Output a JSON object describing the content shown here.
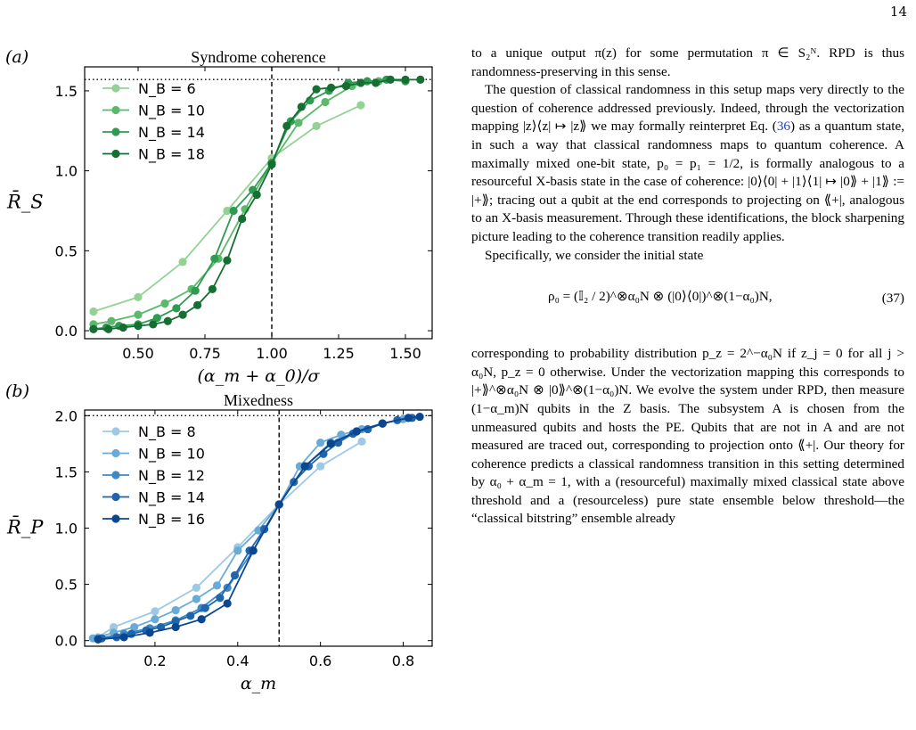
{
  "page_number": "14",
  "figure": {
    "panel_a": {
      "label": "(a)",
      "chart_data": {
        "type": "line",
        "title": "Syndrome coherence",
        "xlabel": "(α_m + α_0)/σ",
        "ylabel": "R̄_S",
        "xlim": [
          0.3,
          1.6
        ],
        "ylim": [
          -0.05,
          1.65
        ],
        "xticks": [
          "0.50",
          "0.75",
          "1.00",
          "1.25",
          "1.50"
        ],
        "yticks": [
          "0.0",
          "0.5",
          "1.0",
          "1.5"
        ],
        "hline": 1.5708,
        "vline": 1.0,
        "legend_position": "upper-left",
        "colors": [
          "#92d394",
          "#5cb96b",
          "#2f9a51",
          "#166e32"
        ],
        "series": [
          {
            "name": "N_B = 6",
            "x": [
              0.333,
              0.5,
              0.667,
              0.833,
              1.0,
              1.167,
              1.333
            ],
            "y": [
              0.12,
              0.21,
              0.43,
              0.75,
              1.08,
              1.28,
              1.41
            ]
          },
          {
            "name": "N_B = 10",
            "x": [
              0.333,
              0.4,
              0.5,
              0.6,
              0.7,
              0.8,
              0.9,
              1.0,
              1.1,
              1.2,
              1.3,
              1.4
            ],
            "y": [
              0.04,
              0.06,
              0.1,
              0.17,
              0.26,
              0.45,
              0.76,
              1.05,
              1.3,
              1.43,
              1.53,
              1.56
            ]
          },
          {
            "name": "N_B = 14",
            "x": [
              0.333,
              0.381,
              0.429,
              0.5,
              0.571,
              0.643,
              0.714,
              0.786,
              0.857,
              0.929,
              1.0,
              1.071,
              1.143,
              1.214,
              1.286,
              1.357,
              1.429,
              1.5
            ],
            "y": [
              0.01,
              0.02,
              0.03,
              0.04,
              0.08,
              0.14,
              0.25,
              0.45,
              0.75,
              0.88,
              1.05,
              1.31,
              1.44,
              1.5,
              1.55,
              1.56,
              1.57,
              1.56
            ]
          },
          {
            "name": "N_B = 18",
            "x": [
              0.333,
              0.389,
              0.444,
              0.5,
              0.556,
              0.611,
              0.667,
              0.722,
              0.778,
              0.833,
              0.889,
              0.944,
              1.0,
              1.056,
              1.111,
              1.167,
              1.222,
              1.278,
              1.333,
              1.389,
              1.444,
              1.5,
              1.556
            ],
            "y": [
              0.01,
              0.01,
              0.02,
              0.03,
              0.04,
              0.06,
              0.1,
              0.16,
              0.26,
              0.44,
              0.7,
              0.85,
              1.04,
              1.28,
              1.4,
              1.51,
              1.52,
              1.53,
              1.55,
              1.55,
              1.57,
              1.57,
              1.57
            ]
          }
        ]
      }
    },
    "panel_b": {
      "label": "(b)",
      "chart_data": {
        "type": "line",
        "title": "Mixedness",
        "xlabel": "α_m",
        "ylabel": "R̄_P",
        "xlim": [
          0.03,
          0.87
        ],
        "ylim": [
          -0.05,
          2.05
        ],
        "xticks": [
          "0.2",
          "0.4",
          "0.6",
          "0.8"
        ],
        "yticks": [
          "0.0",
          "0.5",
          "1.0",
          "1.5",
          "2.0"
        ],
        "hline": 2.0,
        "vline": 0.5,
        "legend_position": "upper-left",
        "colors": [
          "#9ec9e6",
          "#6aaad6",
          "#3f88c4",
          "#1f65ad",
          "#0b4791"
        ],
        "series": [
          {
            "name": "N_B = 8",
            "x": [
              0.0625,
              0.1,
              0.2,
              0.3,
              0.4,
              0.5,
              0.6,
              0.7
            ],
            "y": [
              0.03,
              0.12,
              0.26,
              0.47,
              0.83,
              1.21,
              1.55,
              1.77
            ]
          },
          {
            "name": "N_B = 10",
            "x": [
              0.05,
              0.1,
              0.15,
              0.2,
              0.25,
              0.3,
              0.35,
              0.4,
              0.45,
              0.5,
              0.55,
              0.6,
              0.65,
              0.7,
              0.75,
              0.8
            ],
            "y": [
              0.02,
              0.07,
              0.12,
              0.19,
              0.27,
              0.37,
              0.49,
              0.8,
              0.98,
              1.21,
              1.55,
              1.76,
              1.83,
              1.88,
              1.93,
              1.97
            ]
          },
          {
            "name": "N_B = 12",
            "x": [
              0.0625,
              0.125,
              0.1875,
              0.25,
              0.3125,
              0.375,
              0.4375,
              0.5,
              0.5625,
              0.625,
              0.6875,
              0.75,
              0.8125
            ],
            "y": [
              0.02,
              0.06,
              0.11,
              0.18,
              0.29,
              0.47,
              0.8,
              1.21,
              1.55,
              1.76,
              1.86,
              1.93,
              1.98
            ]
          },
          {
            "name": "N_B = 14",
            "x": [
              0.0714,
              0.1071,
              0.1429,
              0.1786,
              0.2143,
              0.25,
              0.2857,
              0.3214,
              0.3571,
              0.3929,
              0.4286,
              0.4643,
              0.5,
              0.5357,
              0.5714,
              0.6071,
              0.6429,
              0.6786,
              0.7143,
              0.75,
              0.7857,
              0.8214
            ],
            "y": [
              0.02,
              0.03,
              0.06,
              0.09,
              0.12,
              0.17,
              0.22,
              0.29,
              0.38,
              0.58,
              0.8,
              0.99,
              1.21,
              1.41,
              1.55,
              1.66,
              1.76,
              1.84,
              1.88,
              1.93,
              1.96,
              1.98
            ]
          },
          {
            "name": "N_B = 16",
            "x": [
              0.0625,
              0.125,
              0.1875,
              0.25,
              0.3125,
              0.375,
              0.4375,
              0.5,
              0.5625,
              0.625,
              0.6875,
              0.75,
              0.8125,
              0.84
            ],
            "y": [
              0.01,
              0.03,
              0.07,
              0.12,
              0.19,
              0.33,
              0.8,
              1.21,
              1.55,
              1.75,
              1.86,
              1.93,
              1.98,
              1.99
            ]
          }
        ]
      }
    }
  },
  "text": {
    "p1": "to a unique output π(z) for some permutation π ∈ S₂ᴺ. RPD is thus randomness-preserving in this sense.",
    "p2_a": "The question of classical randomness in this setup maps very directly to the question of coherence addressed previously. Indeed, through the vectorization mapping |z⟩⟨z| ↦ |z⟫ we may formally reinterpret Eq. (",
    "p2_ref": "36",
    "p2_b": ") as a quantum state, in such a way that classical randomness maps to quantum coherence. A maximally mixed one-bit state, p₀ = p₁ = 1/2, is formally analogous to a resourceful X-basis state in the case of coherence: |0⟩⟨0| + |1⟩⟨1| ↦ |0⟫ + |1⟫ := |+⟫; tracing out a qubit at the end corresponds to projecting on ⟪+|, analogous to an X-basis measurement. Through these identifications, the block sharpening picture leading to the coherence transition readily applies.",
    "p3": "Specifically, we consider the initial state",
    "eq": "ρ₀ = (𝕀₂ / 2)^⊗α₀N ⊗ (|0⟩⟨0|)^⊗(1−α₀)N,",
    "eq_num": "(37)",
    "p4": "corresponding to probability distribution p_z = 2^−α₀N if z_j = 0 for all j > α₀N, p_z = 0 otherwise. Under the vectorization mapping this corresponds to |+⟫^⊗α₀N ⊗ |0⟫^⊗(1−α₀)N. We evolve the system under RPD, then measure (1−α_m)N qubits in the Z basis. The subsystem A is chosen from the unmeasured qubits and hosts the PE. Qubits that are not in A and are not measured are traced out, corresponding to projection onto ⟪+|. Our theory for coherence predicts a classical randomness transition in this setting determined by α₀ + α_m = 1, with a (resourceful) maximally mixed classical state above threshold and a (resourceless) pure state ensemble below threshold—the “classical bitstring” ensemble already"
  }
}
